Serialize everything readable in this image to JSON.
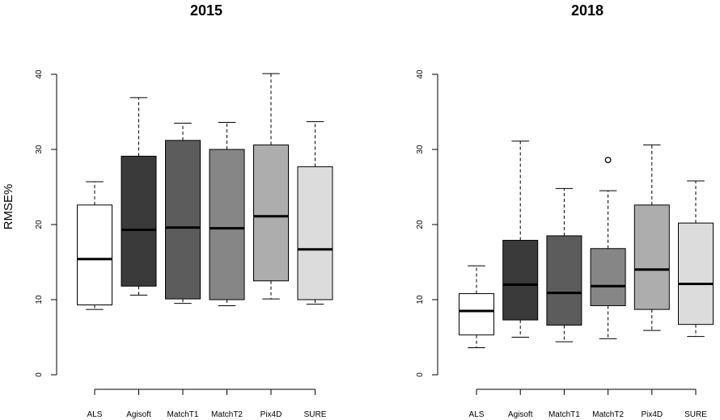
{
  "chart_data": [
    {
      "type": "boxplot",
      "title": "2015",
      "ylabel": "RMSE%",
      "xlabel": "",
      "ylim": [
        0,
        40
      ],
      "yticks": [
        0,
        10,
        20,
        30,
        40
      ],
      "categories": [
        "ALS",
        "Agisoft",
        "MatchT1",
        "MatchT2",
        "Pix4D",
        "SURE"
      ],
      "fill_colors": [
        "#ffffff",
        "#3a3a3a",
        "#5c5c5c",
        "#868686",
        "#adadad",
        "#dcdcdc"
      ],
      "boxes": [
        {
          "min": 8.7,
          "q1": 9.3,
          "median": 15.4,
          "q3": 22.6,
          "max": 25.7,
          "outliers": []
        },
        {
          "min": 10.6,
          "q1": 11.8,
          "median": 19.3,
          "q3": 29.1,
          "max": 36.9,
          "outliers": []
        },
        {
          "min": 9.5,
          "q1": 10.1,
          "median": 19.6,
          "q3": 31.2,
          "max": 33.5,
          "outliers": []
        },
        {
          "min": 9.2,
          "q1": 10.0,
          "median": 19.5,
          "q3": 30.0,
          "max": 33.6,
          "outliers": []
        },
        {
          "min": 10.1,
          "q1": 12.5,
          "median": 21.1,
          "q3": 30.6,
          "max": 40.1,
          "outliers": []
        },
        {
          "min": 9.4,
          "q1": 10.0,
          "median": 16.7,
          "q3": 27.7,
          "max": 33.7,
          "outliers": []
        }
      ]
    },
    {
      "type": "boxplot",
      "title": "2018",
      "ylabel": "",
      "xlabel": "",
      "ylim": [
        0,
        40
      ],
      "yticks": [
        0,
        10,
        20,
        30,
        40
      ],
      "categories": [
        "ALS",
        "Agisoft",
        "MatchT1",
        "MatchT2",
        "Pix4D",
        "SURE"
      ],
      "fill_colors": [
        "#ffffff",
        "#3a3a3a",
        "#5c5c5c",
        "#868686",
        "#adadad",
        "#dcdcdc"
      ],
      "boxes": [
        {
          "min": 3.6,
          "q1": 5.3,
          "median": 8.5,
          "q3": 10.8,
          "max": 14.5,
          "outliers": []
        },
        {
          "min": 5.0,
          "q1": 7.3,
          "median": 12.0,
          "q3": 17.9,
          "max": 31.1,
          "outliers": []
        },
        {
          "min": 4.4,
          "q1": 6.6,
          "median": 10.9,
          "q3": 18.5,
          "max": 24.8,
          "outliers": []
        },
        {
          "min": 4.8,
          "q1": 9.2,
          "median": 11.8,
          "q3": 16.8,
          "max": 24.5,
          "outliers": [
            28.6
          ]
        },
        {
          "min": 5.9,
          "q1": 8.7,
          "median": 14.0,
          "q3": 22.6,
          "max": 30.6,
          "outliers": []
        },
        {
          "min": 5.1,
          "q1": 6.7,
          "median": 12.1,
          "q3": 20.2,
          "max": 25.8,
          "outliers": []
        }
      ]
    }
  ]
}
